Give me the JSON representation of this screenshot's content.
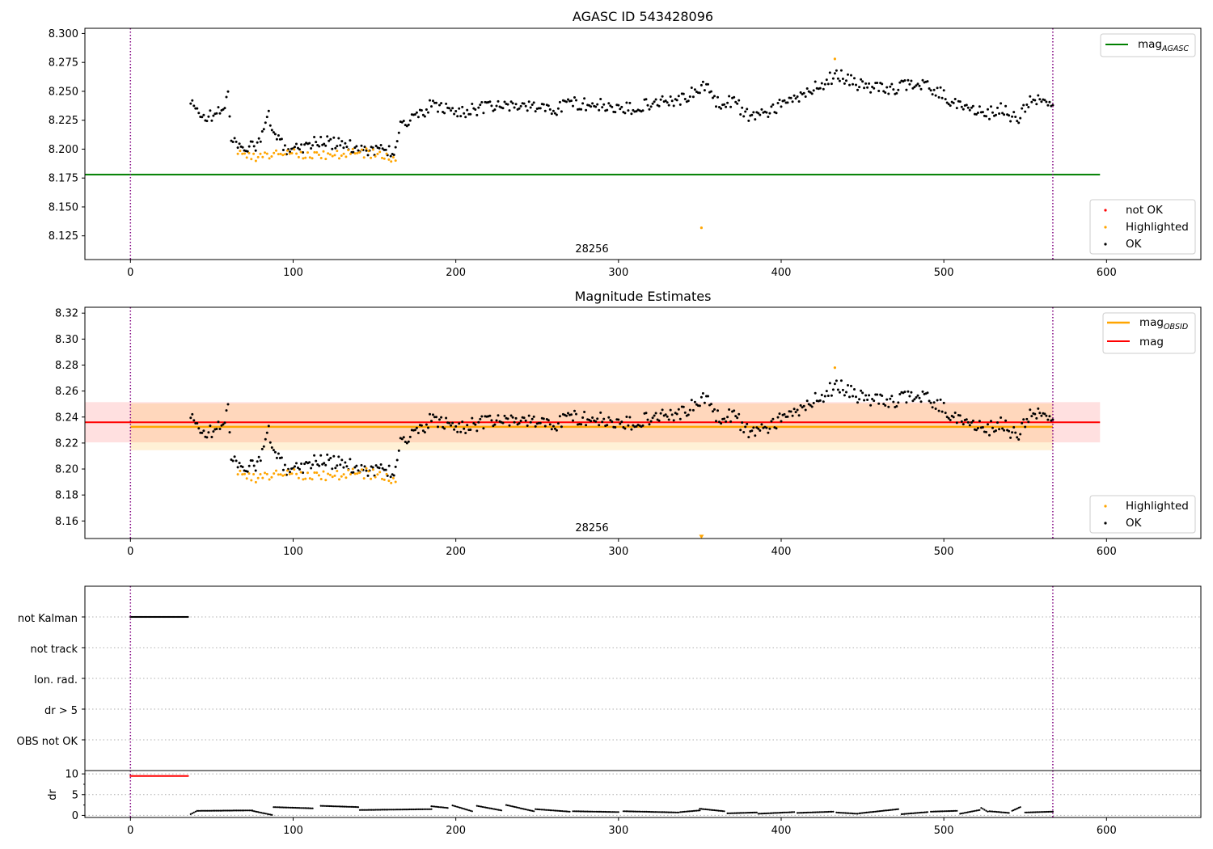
{
  "chart_data": [
    {
      "type": "scatter",
      "title": "AGASC ID 543428096",
      "xlim": [
        -28,
        658
      ],
      "ylim": [
        8.1045,
        8.3045
      ],
      "xticks": [
        0,
        100,
        200,
        300,
        400,
        500,
        600
      ],
      "yticks": [
        "8.125",
        "8.150",
        "8.175",
        "8.200",
        "8.225",
        "8.250",
        "8.275",
        "8.300"
      ],
      "vlines": [
        0,
        567
      ],
      "reference_line": {
        "name": "mag",
        "subscript": "AGASC",
        "value": 8.178,
        "x_range": [
          -28,
          596
        ],
        "color": "#008000"
      },
      "annotation": {
        "text": "28256",
        "x": 283,
        "y": 8.11
      },
      "legend_lines": [
        {
          "name": "mag",
          "subscript": "AGASC",
          "color": "#008000"
        }
      ],
      "legend_points": [
        {
          "name": "not OK",
          "color": "#ff0000"
        },
        {
          "name": "Highlighted",
          "color": "#ffa500"
        },
        {
          "name": "OK",
          "color": "#000000"
        }
      ],
      "highlighted_outliers": [
        {
          "x": 351,
          "y": 8.132
        },
        {
          "x": 433,
          "y": 8.278
        }
      ],
      "ok_trend": [
        [
          37,
          8.239
        ],
        [
          45,
          8.228
        ],
        [
          52,
          8.229
        ],
        [
          57,
          8.236
        ],
        [
          60,
          8.248
        ],
        [
          62,
          8.206
        ],
        [
          75,
          8.201
        ],
        [
          80,
          8.207
        ],
        [
          85,
          8.231
        ],
        [
          88,
          8.21
        ],
        [
          96,
          8.201
        ],
        [
          105,
          8.202
        ],
        [
          115,
          8.207
        ],
        [
          125,
          8.205
        ],
        [
          140,
          8.201
        ],
        [
          150,
          8.199
        ],
        [
          160,
          8.199
        ],
        [
          163,
          8.198
        ],
        [
          166,
          8.222
        ],
        [
          175,
          8.226
        ],
        [
          185,
          8.238
        ],
        [
          200,
          8.232
        ],
        [
          220,
          8.236
        ],
        [
          240,
          8.238
        ],
        [
          260,
          8.234
        ],
        [
          270,
          8.24
        ],
        [
          290,
          8.238
        ],
        [
          300,
          8.233
        ],
        [
          320,
          8.24
        ],
        [
          340,
          8.244
        ],
        [
          355,
          8.255
        ],
        [
          360,
          8.24
        ],
        [
          372,
          8.242
        ],
        [
          378,
          8.229
        ],
        [
          390,
          8.232
        ],
        [
          405,
          8.241
        ],
        [
          420,
          8.252
        ],
        [
          435,
          8.265
        ],
        [
          450,
          8.254
        ],
        [
          470,
          8.252
        ],
        [
          480,
          8.258
        ],
        [
          495,
          8.251
        ],
        [
          505,
          8.241
        ],
        [
          515,
          8.236
        ],
        [
          525,
          8.23
        ],
        [
          535,
          8.235
        ],
        [
          545,
          8.225
        ],
        [
          555,
          8.245
        ],
        [
          567,
          8.237
        ]
      ],
      "highlighted_trend": [
        [
          65,
          8.196
        ],
        [
          75,
          8.192
        ],
        [
          95,
          8.198
        ],
        [
          105,
          8.196
        ],
        [
          115,
          8.196
        ],
        [
          125,
          8.195
        ],
        [
          140,
          8.197
        ],
        [
          150,
          8.196
        ],
        [
          163,
          8.191
        ]
      ]
    },
    {
      "type": "scatter",
      "title": "Magnitude Estimates",
      "xlim": [
        -28,
        658
      ],
      "ylim": [
        8.1465,
        8.3245
      ],
      "xticks": [
        0,
        100,
        200,
        300,
        400,
        500,
        600
      ],
      "yticks": [
        "8.16",
        "8.18",
        "8.20",
        "8.22",
        "8.24",
        "8.26",
        "8.28",
        "8.30",
        "8.32"
      ],
      "vlines": [
        0,
        567
      ],
      "mag_obsid": {
        "value": 8.2325,
        "band": [
          8.2145,
          8.2505
        ],
        "x_range": [
          0,
          567
        ],
        "color": "#ffa500"
      },
      "mag": {
        "value": 8.236,
        "band": [
          8.2205,
          8.2515
        ],
        "x_range": [
          -28,
          596
        ],
        "color": "#ff0000"
      },
      "annotation": {
        "text": "28256",
        "x": 283,
        "y": 8.1485
      },
      "legend_lines": [
        {
          "name": "mag",
          "subscript": "OBSID",
          "color": "#ffa500"
        },
        {
          "name": "mag",
          "subscript": "",
          "color": "#ff0000"
        }
      ],
      "legend_points": [
        {
          "name": "Highlighted",
          "color": "#ffa500"
        },
        {
          "name": "OK",
          "color": "#000000"
        }
      ],
      "low_marker": {
        "x": 351,
        "y": 8.1475,
        "color": "#ffa500"
      },
      "highlighted_outliers": [
        {
          "x": 433,
          "y": 8.278
        }
      ]
    },
    {
      "type": "scatter",
      "title": "",
      "xlim": [
        -28,
        658
      ],
      "xticks": [
        0,
        100,
        200,
        300,
        400,
        500,
        600
      ],
      "vlines": [
        0,
        567
      ],
      "flag_rows": [
        "not Kalman",
        "not track",
        "Ion. rad.",
        "dr > 5",
        "OBS not OK"
      ],
      "flag_segments": [
        {
          "row": "not Kalman",
          "x_range": [
            0,
            36
          ]
        }
      ],
      "dr_ylabel": "dr",
      "dr_ylim": [
        -0.5,
        10.8
      ],
      "dr_yticks": [
        "0",
        "5",
        "10"
      ],
      "dr_high": {
        "x_range": [
          0,
          36
        ],
        "value": 9.5,
        "color": "#ff0000"
      },
      "dr_segments": [
        [
          37,
          0.3,
          41,
          1.1
        ],
        [
          41,
          1.1,
          75,
          1.2
        ],
        [
          75,
          1.1,
          87,
          0.1
        ],
        [
          88,
          2.0,
          112,
          1.7
        ],
        [
          117,
          2.3,
          140,
          2.0
        ],
        [
          141,
          1.3,
          185,
          1.5
        ],
        [
          185,
          2.2,
          195,
          1.8
        ],
        [
          198,
          2.4,
          210,
          1.0
        ],
        [
          213,
          2.3,
          228,
          1.2
        ],
        [
          231,
          2.5,
          248,
          1.0
        ],
        [
          249,
          1.5,
          270,
          0.9
        ],
        [
          272,
          1.0,
          300,
          0.8
        ],
        [
          303,
          1.0,
          337,
          0.7
        ],
        [
          338,
          0.8,
          350,
          1.2
        ],
        [
          350,
          1.6,
          365,
          1.0
        ],
        [
          367,
          0.5,
          385,
          0.7
        ],
        [
          386,
          0.4,
          408,
          0.8
        ],
        [
          410,
          0.6,
          432,
          0.9
        ],
        [
          434,
          0.7,
          447,
          0.4
        ],
        [
          448,
          0.5,
          472,
          1.5
        ],
        [
          474,
          0.3,
          490,
          0.8
        ],
        [
          492,
          0.9,
          508,
          1.1
        ],
        [
          510,
          0.4,
          522,
          1.3
        ],
        [
          523,
          1.8,
          527,
          0.9
        ],
        [
          528,
          1.0,
          540,
          0.6
        ],
        [
          542,
          1.1,
          547,
          2.0
        ],
        [
          550,
          0.7,
          567,
          0.9
        ]
      ]
    }
  ]
}
